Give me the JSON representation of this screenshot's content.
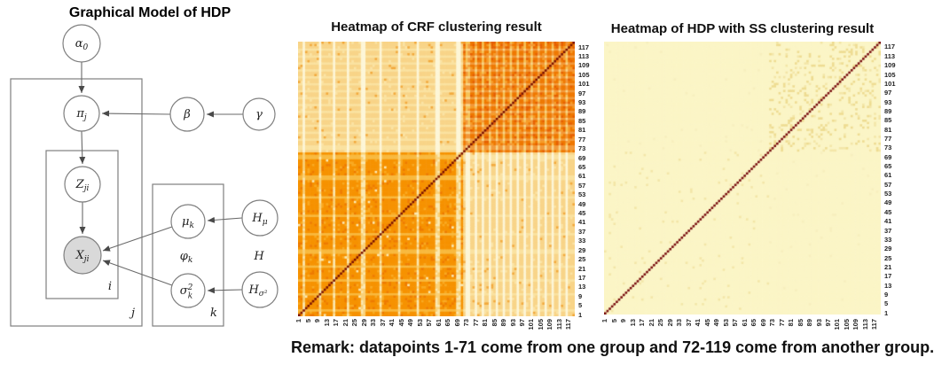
{
  "model": {
    "title": "Graphical Model of HDP",
    "nodes": {
      "alpha0": {
        "main": "α",
        "sub": "0"
      },
      "pi": {
        "main": "π",
        "sub": "j"
      },
      "beta": {
        "main": "β",
        "sub": ""
      },
      "gamma": {
        "main": "γ",
        "sub": ""
      },
      "z": {
        "main": "Z",
        "sub": "ji"
      },
      "x": {
        "main": "X",
        "sub": "ji",
        "shaded": "observed"
      },
      "mu": {
        "main": "μ",
        "sub": "k"
      },
      "sigma": {
        "main": "σ",
        "sup": "2",
        "sub": "k"
      },
      "hmu": {
        "main": "H",
        "sub": "μ"
      },
      "hsigma": {
        "main": "H",
        "sub": "σ²"
      },
      "phi": {
        "main": "φ",
        "sub": "k"
      },
      "h": {
        "main": "H",
        "sub": ""
      }
    },
    "plate_labels": {
      "j": "j",
      "i": "i",
      "k": "k"
    }
  },
  "chart_data": [
    {
      "type": "heatmap",
      "variant": "crf",
      "title": "Heatmap of CRF clustering result",
      "n": 119,
      "split": 71,
      "seed": 20240101,
      "x_ticks": [
        1,
        5,
        9,
        13,
        17,
        21,
        25,
        29,
        33,
        37,
        41,
        45,
        49,
        53,
        57,
        61,
        65,
        69,
        73,
        77,
        81,
        85,
        89,
        93,
        97,
        101,
        105,
        109,
        113,
        117
      ],
      "y_ticks_top_to_bottom": [
        117,
        113,
        109,
        105,
        101,
        97,
        93,
        89,
        85,
        81,
        77,
        73,
        69,
        65,
        61,
        57,
        53,
        49,
        45,
        41,
        37,
        33,
        29,
        25,
        21,
        17,
        13,
        9,
        5,
        1
      ],
      "description": "Symmetric 119x119 pairwise co-clustering similarity matrix. Strong medium-orange block for points 1-71, dark-orange cross-hatched block for points 72-119, light tan between-group blocks, cream stripes at weakly clustered points, dark red main diagonal.",
      "weak_cols_group1": [
        3,
        10,
        16,
        22,
        28,
        29,
        36,
        44,
        52,
        60,
        61,
        69,
        70
      ],
      "weak_cols_group2": [
        73,
        74,
        77,
        80,
        83,
        86,
        89,
        92,
        95,
        98,
        101,
        104,
        107,
        110,
        113,
        116
      ],
      "noise": {
        "g1_dark": 0.1,
        "g1_light": 0.07,
        "g2_dark": 0.2,
        "g2_light": 0.13,
        "between_speckle": 0.04,
        "between_light": 0.06
      },
      "palette": {
        "diagonal": "#7B1200",
        "g1_base": "#F69200",
        "g1_speckle_dark": "#EE7B00",
        "g1_speckle_light": "#F9A920",
        "g1_stripe": "#FBE9B2",
        "g1_stripe_soft": "#F9D178",
        "g1_row_stripe": "#F8B93E",
        "g2_base": "#EF7800",
        "g2_speckle_dark": "#E66000",
        "g2_speckle_light": "#F69B28",
        "g2_stripe": "#F6C257",
        "g2_stripe_soft": "#F2993B",
        "g2_stripe_cross": "#F8D488",
        "between_base": "#F8D488",
        "between_speckle": "#F2A93C",
        "between_light": "#FBE3A4",
        "between_stripe": "#FDF6D8",
        "between_stripe_soft": "#FAE2A0"
      }
    },
    {
      "type": "heatmap",
      "variant": "uniform",
      "title": "Heatmap of HDP with SS clustering result",
      "n": 119,
      "split": 71,
      "seed": 42,
      "x_ticks": [
        1,
        5,
        9,
        13,
        17,
        21,
        25,
        29,
        33,
        37,
        41,
        45,
        49,
        53,
        57,
        61,
        65,
        69,
        73,
        77,
        81,
        85,
        89,
        93,
        97,
        101,
        105,
        109,
        113,
        117
      ],
      "y_ticks_top_to_bottom": [
        117,
        113,
        109,
        105,
        101,
        97,
        93,
        89,
        85,
        81,
        77,
        73,
        69,
        65,
        61,
        57,
        53,
        49,
        45,
        41,
        37,
        33,
        29,
        25,
        21,
        17,
        13,
        9,
        5,
        1
      ],
      "description": "Nearly uniform pale-yellow 119x119 similarity matrix with dark red main diagonal; faint darker speckles concentrated among points 72-119.",
      "noise": {
        "within_group2": 0.1,
        "within_group2_soft": 0.05,
        "within_group1": 0.03,
        "between": 0.012
      },
      "palette": {
        "background": "#FBF5C6",
        "diagonal": "#7A0F10",
        "speckle": "#EEDC92",
        "speckle_soft": "#F3E6A8",
        "speckle_faint": "#F7EFBE"
      }
    }
  ],
  "remark": "Remark: datapoints 1-71 come from one group and 72-119 come from another group."
}
